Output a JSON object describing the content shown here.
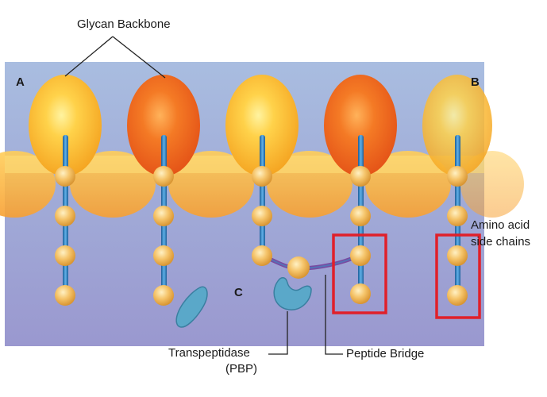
{
  "labels": {
    "glycan_backbone": "Glycan Backbone",
    "panel_a": "A",
    "panel_b": "B",
    "panel_c": "C",
    "amino_acid_line1": "Amino acid",
    "amino_acid_line2": "side chains",
    "transpeptidase_line1": "Transpeptidase",
    "transpeptidase_line2": "(PBP)",
    "peptide_bridge": "Peptide Bridge"
  },
  "colors": {
    "membrane_top": "#9fb2d6",
    "membrane_bottom": "#9d9fd2",
    "glycan_yellow": "#f7b52a",
    "glycan_orange": "#f26a1f",
    "side_chain_blue": "#2f86c8",
    "amino_ball": "#f2b447",
    "peptide_bridge": "#7a4aa0",
    "pbp_enzyme": "#5aa8c9",
    "highlight_box": "#e0202a"
  },
  "counts": {
    "glycan_units": 5,
    "highlight_boxes": 2
  }
}
